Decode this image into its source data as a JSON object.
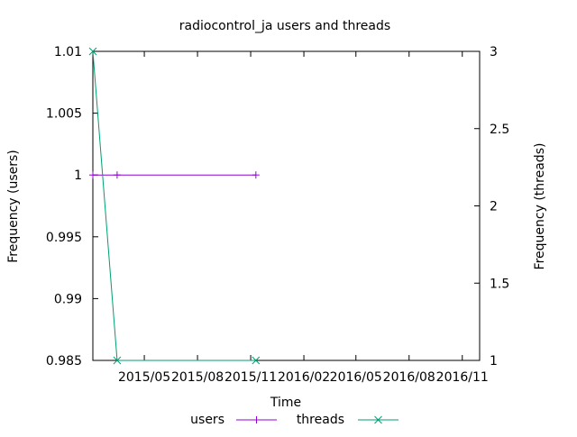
{
  "chart_data": {
    "type": "line",
    "title": "radiocontrol_ja users and threads",
    "xlabel": "Time",
    "ylabel_left": "Frequency (users)",
    "ylabel_right": "Frequency (threads)",
    "xlim": [
      "2015-02-01",
      "2016-12-01"
    ],
    "x_ticks": [
      "2015/05",
      "2015/08",
      "2015/11",
      "2016/02",
      "2016/05",
      "2016/08",
      "2016/11"
    ],
    "ylim_left": [
      0.985,
      1.01
    ],
    "y_ticks_left": [
      "0.985",
      "0.99",
      "0.995",
      "1",
      "1.005",
      "1.01"
    ],
    "ylim_right": [
      1,
      3
    ],
    "y_ticks_right": [
      "1",
      "1.5",
      "2",
      "2.5",
      "3"
    ],
    "grid": false,
    "legend_position": "bottom-center",
    "series": [
      {
        "name": "users",
        "axis": "left",
        "color": "#9400d3",
        "marker": "plus",
        "points": [
          [
            "2015-02-01",
            1
          ],
          [
            "2015-03-15",
            1
          ],
          [
            "2015-11-10",
            1
          ]
        ]
      },
      {
        "name": "threads",
        "axis": "right",
        "color": "#009e73",
        "marker": "cross",
        "points": [
          [
            "2015-02-01",
            3
          ],
          [
            "2015-03-15",
            1
          ],
          [
            "2015-11-10",
            1
          ]
        ]
      }
    ]
  }
}
